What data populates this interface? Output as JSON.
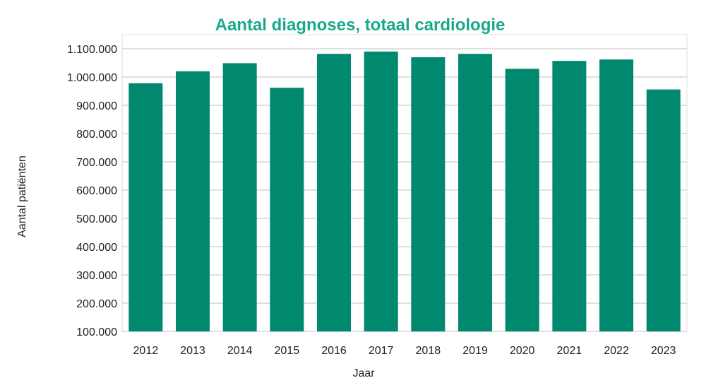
{
  "chart_data": {
    "type": "bar",
    "title": "Aantal diagnoses, totaal cardiologie",
    "xlabel": "Jaar",
    "ylabel": "Aantal patiënten",
    "categories": [
      "2012",
      "2013",
      "2014",
      "2015",
      "2016",
      "2017",
      "2018",
      "2019",
      "2020",
      "2021",
      "2022",
      "2023"
    ],
    "values": [
      978000,
      1020000,
      1049000,
      962000,
      1082000,
      1090000,
      1070000,
      1082000,
      1029000,
      1057000,
      1062000,
      956000
    ],
    "ylim": [
      100000,
      1150000
    ],
    "yticks": [
      100000,
      200000,
      300000,
      400000,
      500000,
      600000,
      700000,
      800000,
      900000,
      1000000,
      1100000
    ],
    "ytick_labels": [
      "100.000",
      "200.000",
      "300.000",
      "400.000",
      "500.000",
      "600.000",
      "700.000",
      "800.000",
      "900.000",
      "1.000.000",
      "1.100.000"
    ],
    "grid": true,
    "bar_color": "#00896f",
    "title_color": "#19a98c"
  }
}
